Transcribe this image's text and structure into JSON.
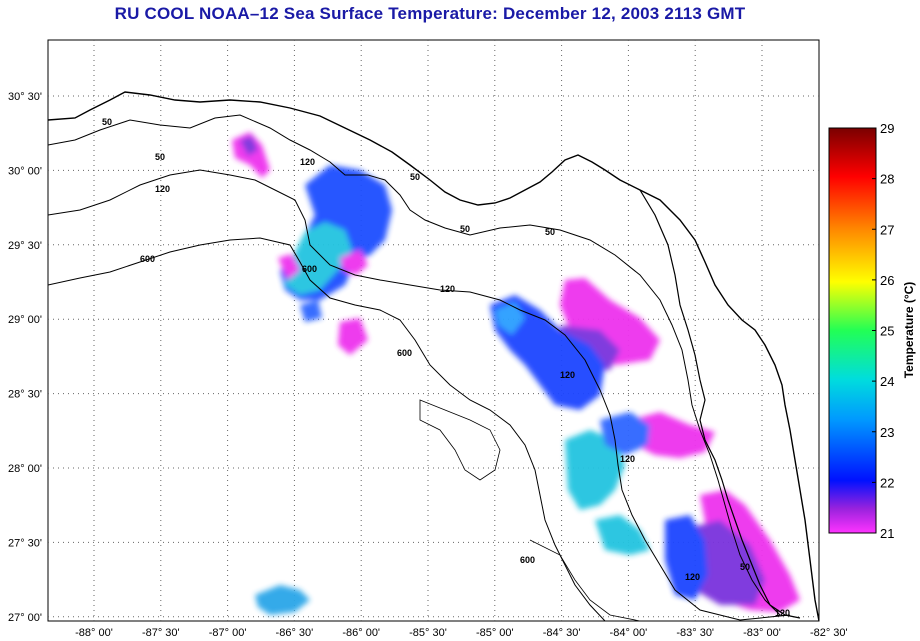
{
  "title": "RU COOL  NOAA–12  Sea Surface Temperature:  December 12, 2003 2113 GMT",
  "map": {
    "lon_labels": [
      "-88° 00'",
      "-87° 30'",
      "-87° 00'",
      "-86° 30'",
      "-86° 00'",
      "-85° 30'",
      "-85° 00'",
      "-84° 30'",
      "-84° 00'",
      "-83° 30'",
      "-83° 00'",
      "-82° 30'"
    ],
    "lat_labels": [
      "30° 30'",
      "30° 00'",
      "29° 30'",
      "29° 00'",
      "28° 30'",
      "28° 00'",
      "27° 30'",
      "27° 00'"
    ],
    "contour_labels": [
      {
        "text": "50"
      },
      {
        "text": "50"
      },
      {
        "text": "120"
      },
      {
        "text": "600"
      },
      {
        "text": "120"
      },
      {
        "text": "600"
      },
      {
        "text": "50"
      },
      {
        "text": "50"
      },
      {
        "text": "50"
      },
      {
        "text": "120"
      },
      {
        "text": "600"
      },
      {
        "text": "120"
      },
      {
        "text": "120"
      },
      {
        "text": "600"
      },
      {
        "text": "120"
      },
      {
        "text": "50"
      },
      {
        "text": "120"
      }
    ]
  },
  "colorbar": {
    "title": "Temperature (°C)",
    "ticks": [
      "29",
      "28",
      "27",
      "26",
      "25",
      "24",
      "23",
      "22",
      "21"
    ],
    "colors": {
      "max": "#800000",
      "red": "#ff0000",
      "orange": "#ff8800",
      "yellow": "#ffff00",
      "green": "#00ff66",
      "cyan": "#00dddd",
      "blue": "#0022ff",
      "purple": "#8822dd",
      "magenta": "#ff22ff"
    }
  }
}
